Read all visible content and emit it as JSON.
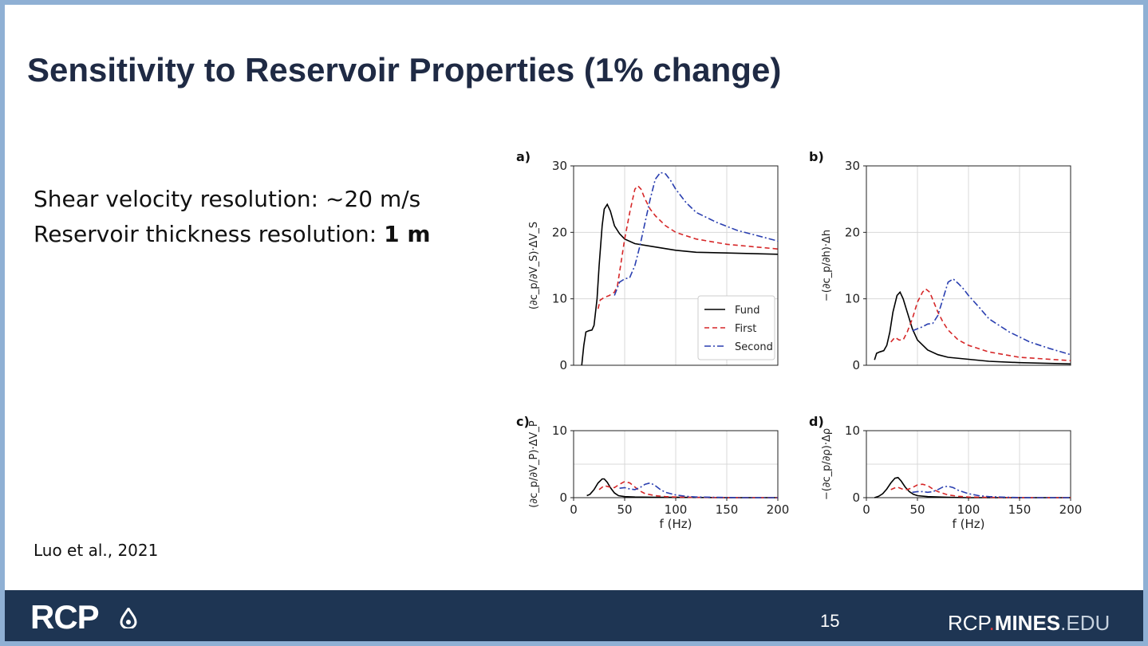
{
  "slide": {
    "title": "Sensitivity to Reservoir Properties (1% change)",
    "bullet1": "Shear velocity resolution: ~20 m/s",
    "bullet2_prefix": "Reservoir thickness resolution: ",
    "bullet2_bold": "1 m",
    "citation": "Luo et al., 2021"
  },
  "footer": {
    "logo": "RCP",
    "page_number": "15",
    "site_part1": "RCP",
    "site_dot": ".",
    "site_part2": "MINES",
    "site_part3": ".EDU"
  },
  "colors": {
    "title": "#1f2a44",
    "footer_bg": "#1e3553",
    "fund": "#000000",
    "first": "#d62728",
    "second": "#2a3fb0"
  },
  "chart_data": [
    {
      "panel": "a)",
      "type": "line",
      "ylabel": "(∂c_p/∂V_S)·ΔV_S",
      "xlabel": "",
      "xlim": [
        0,
        200
      ],
      "ylim": [
        0,
        30
      ],
      "xticks": [],
      "yticks": [
        "0",
        "10",
        "20",
        "30"
      ],
      "grid": true,
      "legend": [
        "Fund",
        "First",
        "Second"
      ],
      "legend_position": "bottom-right",
      "series": [
        {
          "name": "Fund",
          "style": "solid",
          "x": [
            8,
            10,
            12,
            15,
            18,
            20,
            23,
            25,
            28,
            30,
            33,
            36,
            40,
            45,
            50,
            60,
            80,
            100,
            120,
            150,
            200
          ],
          "y": [
            0,
            3,
            5,
            5.2,
            5.3,
            6,
            10,
            15,
            21,
            23.5,
            24.2,
            23.2,
            21,
            19.8,
            19,
            18.3,
            17.8,
            17.3,
            17.0,
            16.9,
            16.7
          ]
        },
        {
          "name": "First",
          "style": "dashed",
          "x": [
            24,
            26,
            30,
            35,
            40,
            43,
            46,
            50,
            55,
            60,
            63,
            66,
            70,
            75,
            80,
            90,
            100,
            120,
            150,
            200
          ],
          "y": [
            8.5,
            9.8,
            10.2,
            10.5,
            11,
            12,
            15,
            19,
            23,
            26.5,
            27,
            26.5,
            25,
            23.5,
            22.5,
            21,
            20,
            19,
            18.2,
            17.5
          ]
        },
        {
          "name": "Second",
          "style": "dashdot",
          "x": [
            40,
            45,
            50,
            55,
            60,
            65,
            70,
            75,
            80,
            85,
            90,
            95,
            100,
            110,
            120,
            140,
            160,
            180,
            200
          ],
          "y": [
            10.5,
            12.5,
            13,
            13.2,
            15,
            18,
            21.5,
            25,
            28,
            29,
            28.8,
            27.8,
            26.5,
            24.5,
            23,
            21.5,
            20.3,
            19.5,
            18.7
          ]
        }
      ]
    },
    {
      "panel": "b)",
      "type": "line",
      "ylabel": "−(∂c_p/∂h)·Δh",
      "xlabel": "",
      "xlim": [
        0,
        200
      ],
      "ylim": [
        0,
        30
      ],
      "xticks": [],
      "yticks": [
        "0",
        "10",
        "20",
        "30"
      ],
      "grid": true,
      "series": [
        {
          "name": "Fund",
          "style": "solid",
          "x": [
            8,
            10,
            13,
            17,
            20,
            23,
            26,
            30,
            33,
            36,
            40,
            45,
            50,
            60,
            70,
            80,
            100,
            120,
            150,
            200
          ],
          "y": [
            0.8,
            1.8,
            2,
            2.2,
            3,
            5,
            8,
            10.5,
            11,
            10,
            8,
            5.5,
            3.8,
            2.3,
            1.6,
            1.2,
            0.9,
            0.6,
            0.4,
            0.2
          ]
        },
        {
          "name": "First",
          "style": "dashed",
          "x": [
            24,
            28,
            32,
            36,
            40,
            45,
            50,
            55,
            58,
            62,
            66,
            70,
            75,
            80,
            90,
            100,
            120,
            150,
            200
          ],
          "y": [
            3.5,
            4.2,
            3.8,
            3.8,
            5,
            7,
            9.5,
            11,
            11.5,
            11,
            9.5,
            8,
            6.5,
            5.3,
            3.8,
            3,
            2,
            1.2,
            0.7
          ]
        },
        {
          "name": "Second",
          "style": "dashdot",
          "x": [
            45,
            50,
            55,
            60,
            65,
            70,
            75,
            80,
            85,
            90,
            95,
            100,
            110,
            120,
            140,
            160,
            180,
            200
          ],
          "y": [
            5.2,
            5.5,
            5.8,
            6.2,
            6.3,
            7.5,
            10,
            12.5,
            13,
            12.3,
            11.5,
            10.5,
            8.8,
            7,
            5,
            3.5,
            2.5,
            1.6
          ]
        }
      ]
    },
    {
      "panel": "c)",
      "type": "line",
      "ylabel": "(∂c_p/∂V_P)·ΔV_P",
      "xlabel": "f (Hz)",
      "xlim": [
        0,
        200
      ],
      "ylim": [
        0,
        10
      ],
      "xticks": [
        "0",
        "50",
        "100",
        "150",
        "200"
      ],
      "yticks": [
        "0",
        "10"
      ],
      "grid": true,
      "series": [
        {
          "name": "Fund",
          "style": "solid",
          "x": [
            13,
            16,
            20,
            24,
            28,
            30,
            33,
            36,
            40,
            44,
            50,
            60,
            80,
            100,
            150,
            200
          ],
          "y": [
            0.3,
            0.5,
            1.2,
            2.2,
            2.8,
            2.8,
            2.3,
            1.5,
            0.7,
            0.3,
            0.15,
            0.1,
            0.05,
            0.05,
            0,
            0
          ]
        },
        {
          "name": "First",
          "style": "dashed",
          "x": [
            25,
            30,
            35,
            40,
            45,
            50,
            55,
            60,
            65,
            70,
            80,
            90,
            100,
            120,
            150,
            200
          ],
          "y": [
            1.2,
            1.8,
            1.6,
            1.5,
            2,
            2.4,
            2.2,
            1.6,
            1,
            0.6,
            0.3,
            0.15,
            0.1,
            0.05,
            0,
            0
          ]
        },
        {
          "name": "Second",
          "style": "dashdot",
          "x": [
            45,
            50,
            55,
            60,
            65,
            70,
            75,
            80,
            85,
            90,
            100,
            110,
            120,
            140,
            160,
            200
          ],
          "y": [
            1.4,
            1.5,
            1.3,
            1.2,
            1.5,
            2,
            2.2,
            1.8,
            1.2,
            0.8,
            0.4,
            0.2,
            0.1,
            0.05,
            0,
            0
          ]
        }
      ]
    },
    {
      "panel": "d)",
      "type": "line",
      "ylabel": "−(∂c_p/∂ρ)·Δρ",
      "xlabel": "f (Hz)",
      "xlim": [
        0,
        200
      ],
      "ylim": [
        0,
        10
      ],
      "xticks": [
        "0",
        "50",
        "100",
        "150",
        "200"
      ],
      "yticks": [
        "0",
        "10"
      ],
      "grid": true,
      "series": [
        {
          "name": "Fund",
          "style": "solid",
          "x": [
            8,
            12,
            16,
            20,
            24,
            28,
            31,
            34,
            38,
            42,
            46,
            50,
            60,
            80,
            100,
            150,
            200
          ],
          "y": [
            0,
            0.2,
            0.6,
            1.3,
            2.2,
            2.9,
            3,
            2.5,
            1.6,
            0.9,
            0.5,
            0.3,
            0.15,
            0.05,
            0,
            0,
            0
          ]
        },
        {
          "name": "First",
          "style": "dashed",
          "x": [
            24,
            30,
            35,
            40,
            45,
            50,
            55,
            60,
            65,
            70,
            80,
            90,
            100,
            120,
            150,
            200
          ],
          "y": [
            1.2,
            1.6,
            1.3,
            1.2,
            1.5,
            1.9,
            2,
            1.8,
            1.3,
            0.9,
            0.4,
            0.2,
            0.1,
            0.05,
            0,
            0
          ]
        },
        {
          "name": "Second",
          "style": "dashdot",
          "x": [
            45,
            50,
            55,
            60,
            65,
            70,
            75,
            80,
            85,
            90,
            100,
            110,
            120,
            140,
            160,
            200
          ],
          "y": [
            0.8,
            0.9,
            0.9,
            0.8,
            0.9,
            1.2,
            1.6,
            1.7,
            1.5,
            1.1,
            0.6,
            0.3,
            0.15,
            0.05,
            0,
            0
          ]
        }
      ]
    }
  ]
}
